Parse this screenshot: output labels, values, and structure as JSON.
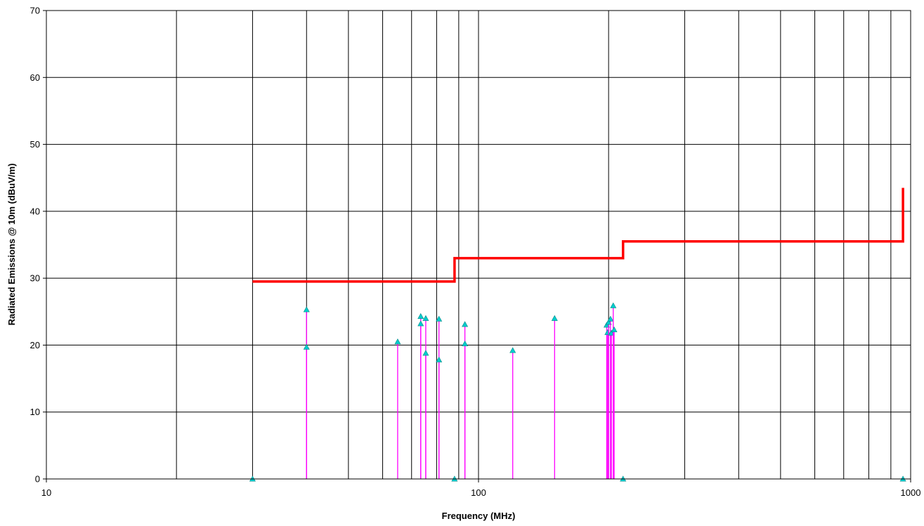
{
  "chart_data": {
    "type": "scatter",
    "xscale": "log",
    "xlim": [
      10,
      1000
    ],
    "ylim": [
      0,
      70
    ],
    "xlabel": "Frequency (MHz)",
    "ylabel": "Radiated Emissions @ 10m (dBuV/m)",
    "xticks": [
      "10",
      "100",
      "1000"
    ],
    "yticks": [
      "0",
      "10",
      "20",
      "30",
      "40",
      "50",
      "60",
      "70"
    ],
    "grid": true,
    "legend": "none",
    "limit_line": {
      "color": "#ff0000",
      "points": [
        [
          30,
          29.5
        ],
        [
          88,
          29.5
        ],
        [
          88,
          33
        ],
        [
          216,
          33
        ],
        [
          216,
          35.5
        ],
        [
          960,
          35.5
        ],
        [
          960,
          43.5
        ]
      ]
    },
    "measurements": {
      "line_color": "#ff00ff",
      "marker_color": "#00cccc",
      "x": [
        30,
        40,
        40,
        65,
        73.5,
        73.5,
        75.5,
        75.5,
        81,
        81,
        88,
        93,
        93,
        120,
        150,
        198,
        199,
        200,
        202,
        203,
        205,
        206,
        216,
        960
      ],
      "y": [
        0,
        25.3,
        19.7,
        20.5,
        24.3,
        23.2,
        24.0,
        18.8,
        23.9,
        17.8,
        0,
        23.1,
        20.2,
        19.2,
        24.0,
        23.0,
        21.9,
        23.4,
        23.9,
        21.8,
        25.9,
        22.3,
        0,
        0
      ]
    }
  }
}
